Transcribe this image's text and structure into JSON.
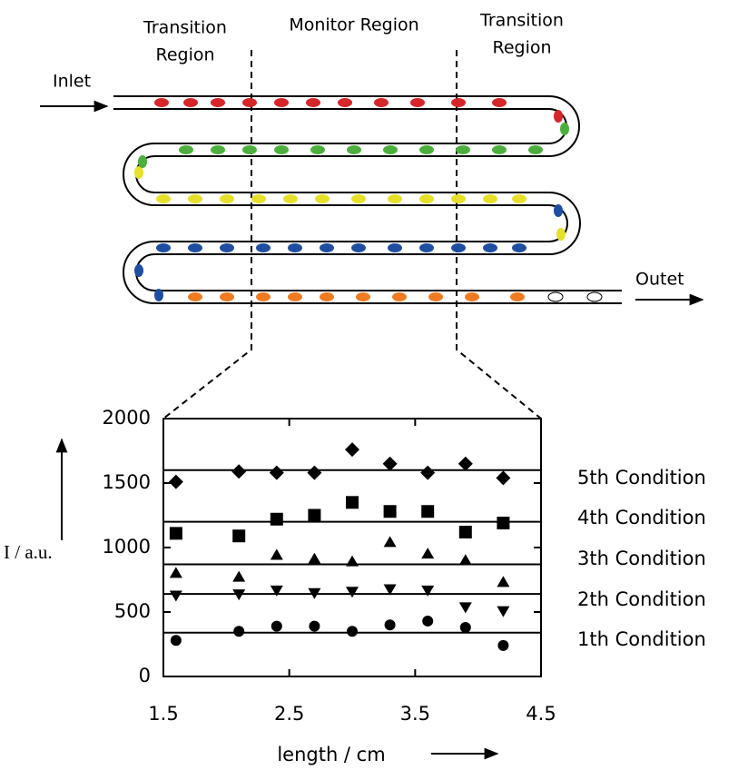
{
  "diagram": {
    "regions": [
      [
        "Transition",
        "Region"
      ],
      [
        "Monitor Region"
      ],
      [
        "Transition",
        "Region"
      ]
    ],
    "inlet": "Inlet",
    "outlet": "Outet"
  },
  "chart_data": {
    "type": "scatter",
    "xlabel": "length  / cm",
    "ylabel": "I / a.u.",
    "x": [
      1.6,
      2.1,
      2.4,
      2.7,
      3.0,
      3.3,
      3.6,
      3.9,
      4.2
    ],
    "xlim": [
      1.5,
      4.5
    ],
    "xticks": [
      1.5,
      2.5,
      3.5,
      4.5
    ],
    "ylim": [
      0,
      2000
    ],
    "yticks": [
      0,
      500,
      1000,
      1500,
      2000
    ],
    "series": [
      {
        "name": "1th Condition",
        "marker": "circle",
        "color": "#000000",
        "level": 340,
        "values": [
          280,
          350,
          390,
          390,
          350,
          400,
          430,
          380,
          240
        ]
      },
      {
        "name": "2th Condition",
        "marker": "triangle-down",
        "color": "#000000",
        "level": 640,
        "values": [
          630,
          640,
          670,
          650,
          660,
          680,
          670,
          540,
          510
        ]
      },
      {
        "name": "3th Condition",
        "marker": "triangle-up",
        "color": "#000000",
        "level": 870,
        "values": [
          800,
          770,
          940,
          910,
          890,
          1040,
          950,
          900,
          730
        ]
      },
      {
        "name": "4th Condition",
        "marker": "square",
        "color": "#000000",
        "level": 1200,
        "values": [
          1110,
          1090,
          1220,
          1250,
          1350,
          1280,
          1280,
          1120,
          1190
        ]
      },
      {
        "name": "5th Condition",
        "marker": "diamond",
        "color": "#000000",
        "level": 1600,
        "values": [
          1510,
          1590,
          1580,
          1580,
          1760,
          1650,
          1580,
          1650,
          1540
        ]
      }
    ]
  }
}
